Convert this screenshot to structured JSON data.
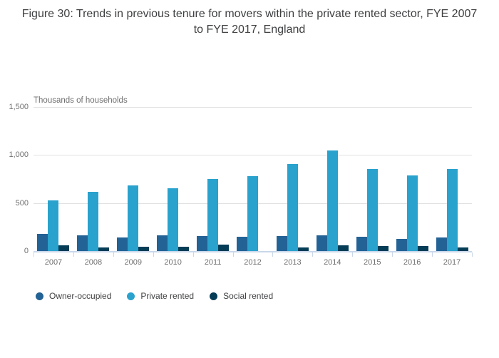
{
  "chart_data": {
    "type": "bar",
    "title": "Figure 30: Trends in previous tenure for movers within the private rented sector, FYE 2007 to FYE 2017, England",
    "unit_label": "Thousands of households",
    "categories": [
      "2007",
      "2008",
      "2009",
      "2010",
      "2011",
      "2012",
      "2013",
      "2014",
      "2015",
      "2016",
      "2017"
    ],
    "series": [
      {
        "name": "Owner-occupied",
        "color": "#236295",
        "values": [
          175,
          160,
          140,
          165,
          155,
          150,
          155,
          165,
          150,
          130,
          140
        ]
      },
      {
        "name": "Private rented",
        "color": "#29a2cd",
        "values": [
          530,
          620,
          680,
          655,
          750,
          780,
          905,
          1045,
          855,
          785,
          855
        ]
      },
      {
        "name": "Social rented",
        "color": "#053d57",
        "values": [
          60,
          40,
          45,
          45,
          65,
          0,
          40,
          60,
          55,
          50,
          35
        ]
      }
    ],
    "ylim": [
      0,
      1500
    ],
    "yticks": [
      {
        "value": 0,
        "label": "0"
      },
      {
        "value": 500,
        "label": "500"
      },
      {
        "value": 1000,
        "label": "1,000"
      },
      {
        "value": 1500,
        "label": "1,500"
      }
    ],
    "grid": true,
    "legend_position": "bottom-left",
    "colors": {
      "gridline": "#e1e1e1",
      "axis_line": "#c9d7ea",
      "tick_label": "#6f6f6f",
      "title_text": "#3f4042"
    }
  }
}
